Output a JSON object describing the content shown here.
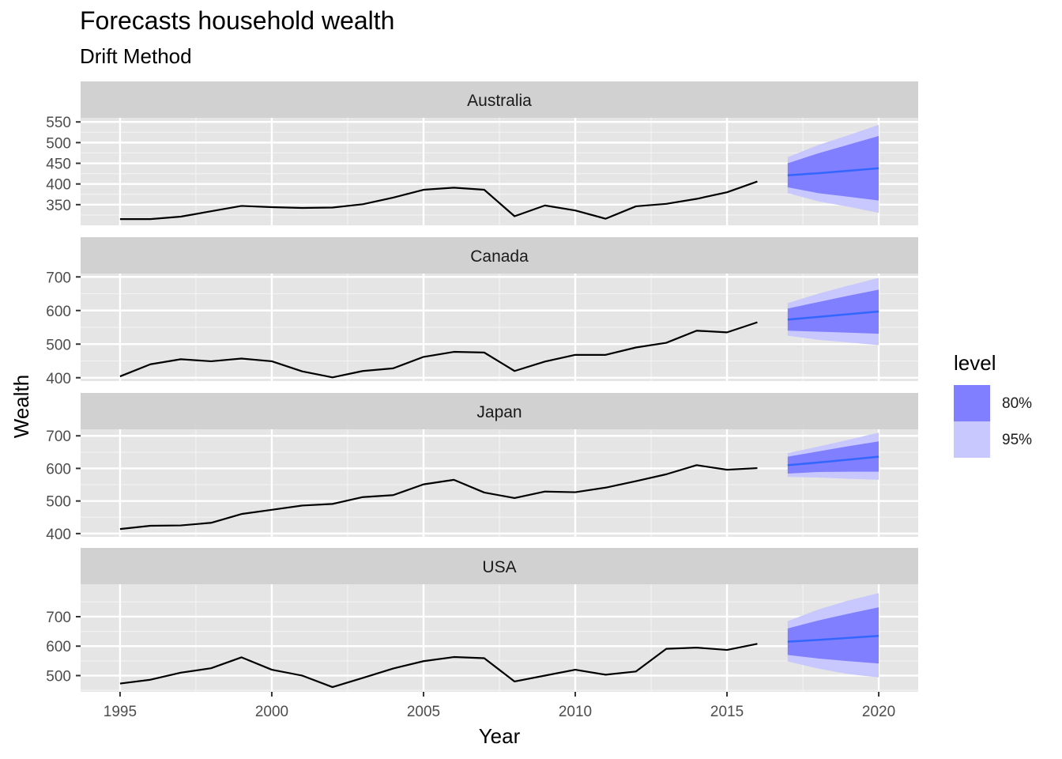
{
  "chart_data": {
    "type": "line",
    "title": "Forecasts household wealth",
    "subtitle": "Drift Method",
    "xlabel": "Year",
    "ylabel": "Wealth",
    "x_ticks": [
      1995,
      2000,
      2005,
      2010,
      2015,
      2020
    ],
    "xlim": [
      1993.7,
      2021.3
    ],
    "legend": {
      "title": "level",
      "position": "right",
      "entries": [
        {
          "label": "80%",
          "color": "#7f7fff"
        },
        {
          "label": "95%",
          "color": "#c8c8ff"
        }
      ]
    },
    "colors": {
      "panel_bg": "#e5e5e5",
      "strip_bg": "#d1d1d1",
      "history_line": "#000000",
      "forecast_line": "#3366ff"
    },
    "facets": [
      {
        "name": "Australia",
        "ylim": [
          300,
          560
        ],
        "y_ticks": [
          350,
          400,
          450,
          500,
          550
        ],
        "years": [
          1995,
          1996,
          1997,
          1998,
          1999,
          2000,
          2001,
          2002,
          2003,
          2004,
          2005,
          2006,
          2007,
          2008,
          2009,
          2010,
          2011,
          2012,
          2013,
          2014,
          2015,
          2016
        ],
        "values": [
          315,
          315,
          321,
          334,
          347,
          344,
          342,
          343,
          351,
          367,
          386,
          391,
          386,
          322,
          348,
          336,
          316,
          346,
          352,
          364,
          380,
          406
        ],
        "forecast": {
          "years": [
            2017,
            2018,
            2019,
            2020
          ],
          "mean": [
            421,
            426,
            432,
            438
          ],
          "lo80": [
            392,
            378,
            369,
            360
          ],
          "hi80": [
            450,
            474,
            495,
            516
          ],
          "lo95": [
            378,
            358,
            345,
            330
          ],
          "hi95": [
            465,
            494,
            518,
            543
          ]
        }
      },
      {
        "name": "Canada",
        "ylim": [
          390,
          710
        ],
        "y_ticks": [
          400,
          500,
          600,
          700
        ],
        "years": [
          1995,
          1996,
          1997,
          1998,
          1999,
          2000,
          2001,
          2002,
          2003,
          2004,
          2005,
          2006,
          2007,
          2008,
          2009,
          2010,
          2011,
          2012,
          2013,
          2014,
          2015,
          2016
        ],
        "values": [
          404,
          440,
          455,
          449,
          457,
          449,
          419,
          401,
          420,
          428,
          462,
          477,
          475,
          420,
          448,
          468,
          468,
          490,
          504,
          540,
          535,
          565
        ],
        "forecast": {
          "years": [
            2017,
            2018,
            2019,
            2020
          ],
          "mean": [
            573,
            581,
            589,
            597
          ],
          "lo80": [
            540,
            537,
            534,
            531
          ],
          "hi80": [
            606,
            625,
            644,
            662
          ],
          "lo95": [
            525,
            513,
            505,
            497
          ],
          "hi95": [
            622,
            650,
            674,
            697
          ]
        }
      },
      {
        "name": "Japan",
        "ylim": [
          390,
          720
        ],
        "y_ticks": [
          400,
          500,
          600,
          700
        ],
        "years": [
          1995,
          1996,
          1997,
          1998,
          1999,
          2000,
          2001,
          2002,
          2003,
          2004,
          2005,
          2006,
          2007,
          2008,
          2009,
          2010,
          2011,
          2012,
          2013,
          2014,
          2015,
          2016
        ],
        "values": [
          414,
          424,
          425,
          433,
          460,
          473,
          486,
          491,
          512,
          518,
          551,
          565,
          526,
          509,
          529,
          527,
          541,
          561,
          582,
          610,
          596,
          601
        ],
        "forecast": {
          "years": [
            2017,
            2018,
            2019,
            2020
          ],
          "mean": [
            610,
            618,
            627,
            636
          ],
          "lo80": [
            584,
            589,
            590,
            590
          ],
          "hi80": [
            636,
            652,
            668,
            683
          ],
          "lo95": [
            574,
            572,
            568,
            565
          ],
          "hi95": [
            647,
            667,
            688,
            710
          ]
        }
      },
      {
        "name": "USA",
        "ylim": [
          445,
          810
        ],
        "y_ticks": [
          500,
          600,
          700
        ],
        "years": [
          1995,
          1996,
          1997,
          1998,
          1999,
          2000,
          2001,
          2002,
          2003,
          2004,
          2005,
          2006,
          2007,
          2008,
          2009,
          2010,
          2011,
          2012,
          2013,
          2014,
          2015,
          2016
        ],
        "values": [
          473,
          486,
          510,
          525,
          562,
          520,
          500,
          461,
          492,
          524,
          549,
          563,
          559,
          480,
          500,
          520,
          503,
          514,
          591,
          595,
          587,
          608
        ],
        "forecast": {
          "years": [
            2017,
            2018,
            2019,
            2020
          ],
          "mean": [
            615,
            621,
            628,
            635
          ],
          "lo80": [
            570,
            558,
            549,
            541
          ],
          "hi80": [
            660,
            687,
            710,
            732
          ],
          "lo95": [
            548,
            524,
            505,
            494
          ],
          "hi95": [
            685,
            724,
            755,
            780
          ]
        }
      }
    ]
  }
}
